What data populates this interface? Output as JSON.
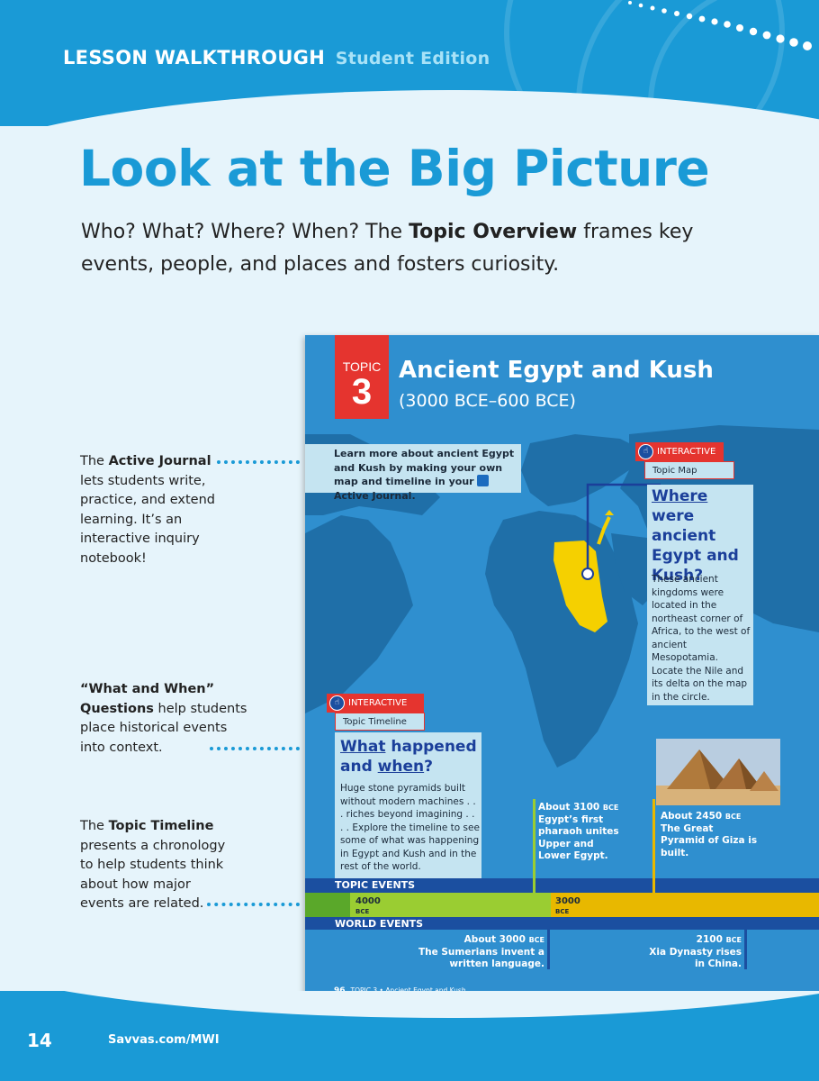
{
  "header": {
    "title": "LESSON WALKTHROUGH",
    "subtitle": "Student Edition"
  },
  "headline": "Look at the Big Picture",
  "intro": {
    "part1": "Who? What? Where? When? The ",
    "bold": "Topic Overview",
    "part2": " frames key events, people, and places and fosters curiosity."
  },
  "callouts": {
    "journal": {
      "pre": "The ",
      "bold": "Active Journal",
      "post": " lets students write, practice, and extend learning. It’s an interactive inquiry notebook!"
    },
    "questions": {
      "bold": "“What and When” Questions",
      "post": " help students place historical events into context."
    },
    "timeline": {
      "pre": "The ",
      "bold": "Topic Timeline",
      "post": " presents a chronology to help students think about how major events are related."
    }
  },
  "textbook": {
    "topic_word": "TOPIC",
    "topic_number": "3",
    "title": "Ancient Egypt and Kush",
    "dates": "(3000 BCE–600 BCE)",
    "journal_text_1": "Learn more about ancient Egypt and Kush by making your own map and timeline in your",
    "journal_text_2": "Active Journal.",
    "map_tag": "INTERACTIVE",
    "map_sub": "Topic Map",
    "where_q_u": "Where",
    "where_q_rest": "were ancient Egypt and Kush?",
    "where_body": "These ancient kingdoms were located in the northeast corner of Africa, to the west of ancient Mesopotamia. Locate the Nile and its delta on the map in the circle.",
    "timeline_tag": "INTERACTIVE",
    "timeline_sub": "Topic Timeline",
    "what_q_u1": "What",
    "what_q_mid": "happened and",
    "what_q_u2": "when",
    "what_q_end": "?",
    "what_body": "Huge stone pyramids built without modern machines . . . riches beyond imagining . . . . Explore the timeline to see some of what was happening in Egypt and Kush and in the rest of the world.",
    "event1_date": "About 3100",
    "event1_era": "BCE",
    "event1_text": "Egypt’s first pharaoh unites Upper and Lower Egypt.",
    "event2_date": "About 2450",
    "event2_era": "BCE",
    "event2_text": "The Great Pyramid of Giza is built.",
    "topic_events": "TOPIC EVENTS",
    "world_events": "WORLD EVENTS",
    "year1": "4000",
    "year1_era": "BCE",
    "year2": "3000",
    "year2_era": "BCE",
    "world1_date": "About 3000",
    "world1_era": "BCE",
    "world1_text": "The Sumerians invent a written language.",
    "world2_date": "2100",
    "world2_era": "BCE",
    "world2_text": "Xia Dynasty rises in China.",
    "page_number": "96",
    "footer": "TOPIC 3 • Ancient Egypt and Kush"
  },
  "footer": {
    "page": "14",
    "url": "Savvas.com/MWI"
  },
  "colors": {
    "brand_blue": "#1a9ad6",
    "topic_red": "#e5342f",
    "egypt_yellow": "#f5d000",
    "timeline_green": "#9acd32",
    "timeline_yellow": "#e8b800"
  }
}
